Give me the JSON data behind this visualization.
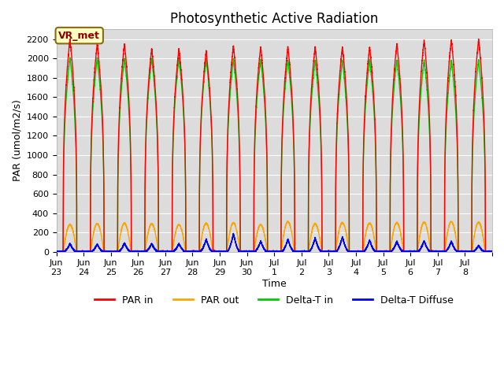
{
  "title": "Photosynthetic Active Radiation",
  "ylabel": "PAR (umol/m2/s)",
  "xlabel": "Time",
  "annotation": "VR_met",
  "annotation_color": "#8B0000",
  "annotation_bg": "#FFFFC0",
  "annotation_border": "#8B6914",
  "ylim": [
    0,
    2300
  ],
  "yticks": [
    0,
    200,
    400,
    600,
    800,
    1000,
    1200,
    1400,
    1600,
    1800,
    2000,
    2200
  ],
  "background_color": "#DCDCDC",
  "plot_bg": "#DCDCDC",
  "grid_color": "white",
  "series": {
    "par_in": {
      "color": "red",
      "label": "PAR in",
      "lw": 1.0
    },
    "par_out": {
      "color": "orange",
      "label": "PAR out",
      "lw": 1.0
    },
    "delta_t_in": {
      "color": "#00CC00",
      "label": "Delta-T in",
      "lw": 1.0
    },
    "delta_t_diffuse": {
      "color": "blue",
      "label": "Delta-T Diffuse",
      "lw": 1.0
    }
  },
  "n_days": 16,
  "peaks_par_in": [
    2200,
    2150,
    2150,
    2100,
    2100,
    2075,
    2130,
    2120,
    2120,
    2120,
    2120,
    2120,
    2150,
    2190,
    2195,
    2195
  ],
  "peaks_par_out": [
    280,
    290,
    295,
    290,
    280,
    295,
    300,
    280,
    310,
    290,
    300,
    295,
    300,
    305,
    310,
    305
  ],
  "peaks_delta_t_in": [
    2010,
    2000,
    2000,
    2000,
    2000,
    1995,
    1990,
    1990,
    1985,
    1980,
    1980,
    1985,
    1985,
    1985,
    1985,
    1985
  ],
  "peaks_diffuse": [
    85,
    80,
    90,
    85,
    85,
    130,
    190,
    110,
    130,
    145,
    155,
    120,
    110,
    115,
    110,
    65
  ],
  "xtick_labels": [
    "Jun 23",
    "Jun 24",
    "Jun 25",
    "Jun 26",
    "Jun 27",
    "Jun 28",
    "Jun 29",
    "Jun 30",
    "Jul 1",
    "Jul 2",
    "Jul 3",
    "Jul 4",
    "Jul 5",
    "Jul 6",
    "Jul 7",
    "Jul 8"
  ],
  "title_fontsize": 12,
  "axis_label_fontsize": 9,
  "tick_fontsize": 8,
  "legend_fontsize": 9
}
